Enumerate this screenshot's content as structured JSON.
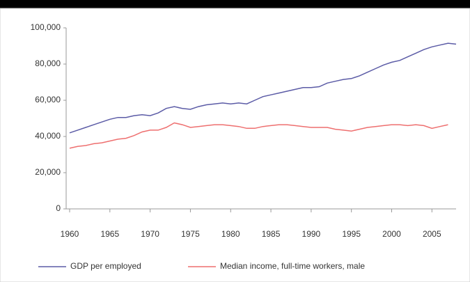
{
  "chart_data": {
    "type": "line",
    "x": [
      1960,
      1961,
      1962,
      1963,
      1964,
      1965,
      1966,
      1967,
      1968,
      1969,
      1970,
      1971,
      1972,
      1973,
      1974,
      1975,
      1976,
      1977,
      1978,
      1979,
      1980,
      1981,
      1982,
      1983,
      1984,
      1985,
      1986,
      1987,
      1988,
      1989,
      1990,
      1991,
      1992,
      1993,
      1994,
      1995,
      1996,
      1997,
      1998,
      1999,
      2000,
      2001,
      2002,
      2003,
      2004,
      2005,
      2006,
      2007,
      2008
    ],
    "series": [
      {
        "name": "GDP per employed",
        "color": "#5b5ba6",
        "values": [
          42000,
          43500,
          45000,
          46500,
          48000,
          49500,
          50500,
          50500,
          51500,
          52000,
          51500,
          53000,
          55500,
          56500,
          55500,
          55000,
          56500,
          57500,
          58000,
          58500,
          58000,
          58500,
          58000,
          60000,
          62000,
          63000,
          64000,
          65000,
          66000,
          67000,
          67000,
          67500,
          69500,
          70500,
          71500,
          72000,
          73500,
          75500,
          77500,
          79500,
          81000,
          82000,
          84000,
          86000,
          88000,
          89500,
          90500,
          91500,
          91000
        ]
      },
      {
        "name": "Median income, full-time workers, male",
        "color": "#ee6f6f",
        "values": [
          33500,
          34500,
          35000,
          36000,
          36500,
          37500,
          38500,
          39000,
          40500,
          42500,
          43500,
          43500,
          45000,
          47500,
          46500,
          45000,
          45500,
          46000,
          46500,
          46500,
          46000,
          45500,
          44500,
          44500,
          45500,
          46000,
          46500,
          46500,
          46000,
          45500,
          45000,
          45000,
          45000,
          44000,
          43500,
          43000,
          44000,
          45000,
          45500,
          46000,
          46500,
          46500,
          46000,
          46500,
          46000,
          44500,
          45500,
          46500,
          null
        ]
      }
    ],
    "xlim": [
      1960,
      2008
    ],
    "xticks": [
      1960,
      1965,
      1970,
      1975,
      1980,
      1985,
      1990,
      1995,
      2000,
      2005
    ],
    "ylim": [
      0,
      100000
    ],
    "yticks": [
      0,
      {
        "value": 20000,
        "label": "20,000"
      },
      {
        "value": 40000,
        "label": "40,000"
      },
      {
        "value": 60000,
        "label": "60,000"
      },
      {
        "value": 80000,
        "label": "80,000"
      },
      {
        "value": 100000,
        "label": "100,000"
      }
    ],
    "grid": false,
    "legend": "bottom"
  }
}
